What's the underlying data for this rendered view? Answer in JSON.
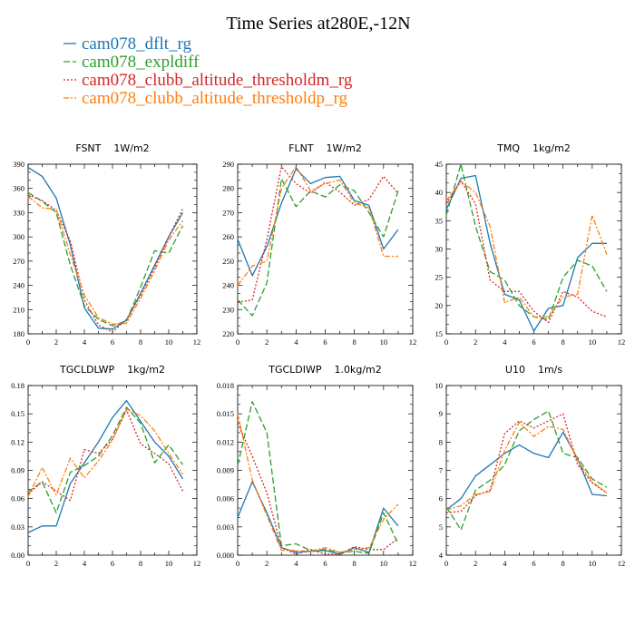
{
  "figure": {
    "title": "Time Series at280E,-12N"
  },
  "legend": [
    {
      "label": "cam078_dflt_rg",
      "color": "#1f77b4",
      "dash": "solid"
    },
    {
      "label": "cam078_expldiff",
      "color": "#2ca02c",
      "dash": "dashed"
    },
    {
      "label": "cam078_clubb_altitude_thresholdm_rg",
      "color": "#d62728",
      "dash": "dotted"
    },
    {
      "label": "cam078_clubb_altitude_thresholdp_rg",
      "color": "#ff7f0e",
      "dash": "dashdot"
    }
  ],
  "chart_data": [
    {
      "type": "line",
      "title": "FSNT",
      "units": "1W/m2",
      "x": [
        0,
        1,
        2,
        3,
        4,
        5,
        6,
        7,
        8,
        9,
        10,
        11
      ],
      "xlim": [
        0,
        12
      ],
      "xticks": [
        "0",
        "2",
        "4",
        "6",
        "8",
        "10",
        "12"
      ],
      "ylim": [
        180,
        390
      ],
      "yticks": [
        "180",
        "210",
        "240",
        "270",
        "300",
        "330",
        "360",
        "390"
      ],
      "series": [
        {
          "name": "cam078_dflt_rg",
          "values": [
            386,
            375,
            348,
            290,
            212,
            187,
            186,
            197,
            230,
            265,
            300,
            330
          ]
        },
        {
          "name": "cam078_expldiff",
          "values": [
            355,
            344,
            330,
            265,
            215,
            198,
            190,
            196,
            238,
            283,
            280,
            314
          ]
        },
        {
          "name": "cam078_clubb_altitude_thresholdm_rg",
          "values": [
            352,
            345,
            333,
            295,
            222,
            191,
            182,
            198,
            228,
            262,
            300,
            335
          ]
        },
        {
          "name": "cam078_clubb_altitude_thresholdp_rg",
          "values": [
            350,
            336,
            334,
            278,
            228,
            200,
            192,
            193,
            224,
            258,
            296,
            320
          ]
        }
      ]
    },
    {
      "type": "line",
      "title": "FLNT",
      "units": "1W/m2",
      "x": [
        0,
        1,
        2,
        3,
        4,
        5,
        6,
        7,
        8,
        9,
        10,
        11
      ],
      "xlim": [
        0,
        12
      ],
      "xticks": [
        "0",
        "2",
        "4",
        "6",
        "8",
        "10",
        "12"
      ],
      "ylim": [
        220,
        290
      ],
      "yticks": [
        "220",
        "230",
        "240",
        "250",
        "260",
        "270",
        "280",
        "290"
      ],
      "series": [
        {
          "name": "cam078_dflt_rg",
          "values": [
            259,
            244,
            256,
            274,
            288,
            282,
            284.5,
            285,
            275,
            273,
            255,
            263
          ]
        },
        {
          "name": "cam078_expldiff",
          "values": [
            234,
            227.5,
            241,
            284,
            272.5,
            279,
            276.5,
            281.5,
            279,
            270,
            260,
            279
          ]
        },
        {
          "name": "cam078_clubb_altitude_thresholdm_rg",
          "values": [
            233,
            234,
            259,
            289,
            282,
            278,
            282.5,
            278.5,
            273,
            275.5,
            285,
            278
          ]
        },
        {
          "name": "cam078_clubb_altitude_thresholdp_rg",
          "values": [
            240,
            248,
            250,
            280,
            289,
            279,
            282,
            283.5,
            274,
            272,
            252,
            252
          ]
        }
      ]
    },
    {
      "type": "line",
      "title": "TMQ",
      "units": "1kg/m2",
      "x": [
        0,
        1,
        2,
        3,
        4,
        5,
        6,
        7,
        8,
        9,
        10,
        11
      ],
      "xlim": [
        0,
        12
      ],
      "xticks": [
        "0",
        "2",
        "4",
        "6",
        "8",
        "10",
        "12"
      ],
      "ylim": [
        15,
        45
      ],
      "yticks": [
        "15",
        "20",
        "25",
        "30",
        "35",
        "40",
        "45"
      ],
      "series": [
        {
          "name": "cam078_dflt_rg",
          "values": [
            37,
            42.5,
            43,
            31,
            22,
            21,
            15.5,
            19.5,
            20,
            28.5,
            31,
            31
          ]
        },
        {
          "name": "cam078_expldiff",
          "values": [
            36,
            45,
            34,
            26,
            24.5,
            20,
            18,
            17.5,
            25,
            28,
            27,
            22.5
          ]
        },
        {
          "name": "cam078_clubb_altitude_thresholdm_rg",
          "values": [
            38,
            42,
            38,
            24.5,
            22.5,
            22.5,
            19,
            17,
            22.5,
            21.5,
            19,
            18
          ]
        },
        {
          "name": "cam078_clubb_altitude_thresholdp_rg",
          "values": [
            38.5,
            42,
            40,
            34,
            20.5,
            21.5,
            18,
            18,
            21.5,
            22,
            36,
            29
          ]
        }
      ]
    },
    {
      "type": "line",
      "title": "TGCLDLWP",
      "units": "1kg/m2",
      "x": [
        0,
        1,
        2,
        3,
        4,
        5,
        6,
        7,
        8,
        9,
        10,
        11
      ],
      "xlim": [
        0,
        12
      ],
      "xticks": [
        "0",
        "2",
        "4",
        "6",
        "8",
        "10",
        "12"
      ],
      "ylim": [
        0,
        0.18
      ],
      "yticks": [
        "0.00",
        "0.03",
        "0.06",
        "0.09",
        "0.12",
        "0.15",
        "0.18"
      ],
      "series": [
        {
          "name": "cam078_dflt_rg",
          "values": [
            0.024,
            0.031,
            0.031,
            0.076,
            0.098,
            0.12,
            0.146,
            0.164,
            0.142,
            0.12,
            0.105,
            0.081
          ]
        },
        {
          "name": "cam078_expldiff",
          "values": [
            0.067,
            0.078,
            0.045,
            0.088,
            0.095,
            0.105,
            0.127,
            0.157,
            0.14,
            0.098,
            0.117,
            0.096
          ]
        },
        {
          "name": "cam078_clubb_altitude_thresholdm_rg",
          "values": [
            0.065,
            0.078,
            0.068,
            0.058,
            0.112,
            0.108,
            0.123,
            0.154,
            0.118,
            0.108,
            0.097,
            0.068
          ]
        },
        {
          "name": "cam078_clubb_altitude_thresholdp_rg",
          "values": [
            0.062,
            0.093,
            0.064,
            0.103,
            0.082,
            0.1,
            0.122,
            0.155,
            0.148,
            0.132,
            0.108,
            0.086
          ]
        }
      ]
    },
    {
      "type": "line",
      "title": "TGCLDIWP",
      "units": "1.0kg/m2",
      "x": [
        0,
        1,
        2,
        3,
        4,
        5,
        6,
        7,
        8,
        9,
        10,
        11
      ],
      "xlim": [
        0,
        12
      ],
      "xticks": [
        "0",
        "2",
        "4",
        "6",
        "8",
        "10",
        "12"
      ],
      "ylim": [
        0,
        0.018
      ],
      "yticks": [
        "0.000",
        "0.003",
        "0.006",
        "0.009",
        "0.012",
        "0.015",
        "0.018"
      ],
      "series": [
        {
          "name": "cam078_dflt_rg",
          "values": [
            0.004,
            0.0078,
            0.0045,
            0.0008,
            0.0003,
            0.0004,
            0.0005,
            0.0001,
            0.0008,
            0.0003,
            0.005,
            0.0031
          ]
        },
        {
          "name": "cam078_expldiff",
          "values": [
            0.0095,
            0.0163,
            0.013,
            0.001,
            0.0012,
            0.0005,
            0.0006,
            0.0003,
            0.0004,
            0.0002,
            0.0045,
            0.0012
          ]
        },
        {
          "name": "cam078_clubb_altitude_thresholdm_rg",
          "values": [
            0.014,
            0.0105,
            0.0066,
            0.0008,
            0.0001,
            0.0006,
            0.0001,
            0.0001,
            0.0009,
            0.0006,
            0.0006,
            0.0018
          ]
        },
        {
          "name": "cam078_clubb_altitude_thresholdp_rg",
          "values": [
            0.015,
            0.008,
            0.0042,
            0.0005,
            0.0005,
            0.0004,
            0.0008,
            0.0003,
            0.0006,
            0.0008,
            0.0038,
            0.0054
          ]
        }
      ]
    },
    {
      "type": "line",
      "title": "U10",
      "units": "1m/s",
      "x": [
        0,
        1,
        2,
        3,
        4,
        5,
        6,
        7,
        8,
        9,
        10,
        11
      ],
      "xlim": [
        0,
        12
      ],
      "xticks": [
        "0",
        "2",
        "4",
        "6",
        "8",
        "10",
        "12"
      ],
      "ylim": [
        4,
        10
      ],
      "yticks": [
        "4",
        "5",
        "6",
        "7",
        "8",
        "9",
        "10"
      ],
      "series": [
        {
          "name": "cam078_dflt_rg",
          "values": [
            5.6,
            6,
            6.8,
            7.2,
            7.6,
            7.9,
            7.6,
            7.45,
            8.35,
            7.4,
            6.15,
            6.1
          ]
        },
        {
          "name": "cam078_expldiff",
          "values": [
            5.7,
            4.9,
            6.3,
            6.65,
            7.2,
            8.4,
            8.8,
            9.1,
            7.6,
            7.45,
            6.7,
            6.4
          ]
        },
        {
          "name": "cam078_clubb_altitude_thresholdm_rg",
          "values": [
            5.5,
            5.55,
            6.1,
            6.3,
            8.3,
            8.75,
            8.5,
            8.75,
            9,
            7.2,
            6.55,
            6.2
          ]
        },
        {
          "name": "cam078_clubb_altitude_thresholdp_rg",
          "values": [
            5.6,
            5.75,
            6.15,
            6.25,
            7.7,
            8.7,
            8.2,
            8.55,
            8.45,
            7.35,
            6.6,
            6.2
          ]
        }
      ]
    }
  ]
}
